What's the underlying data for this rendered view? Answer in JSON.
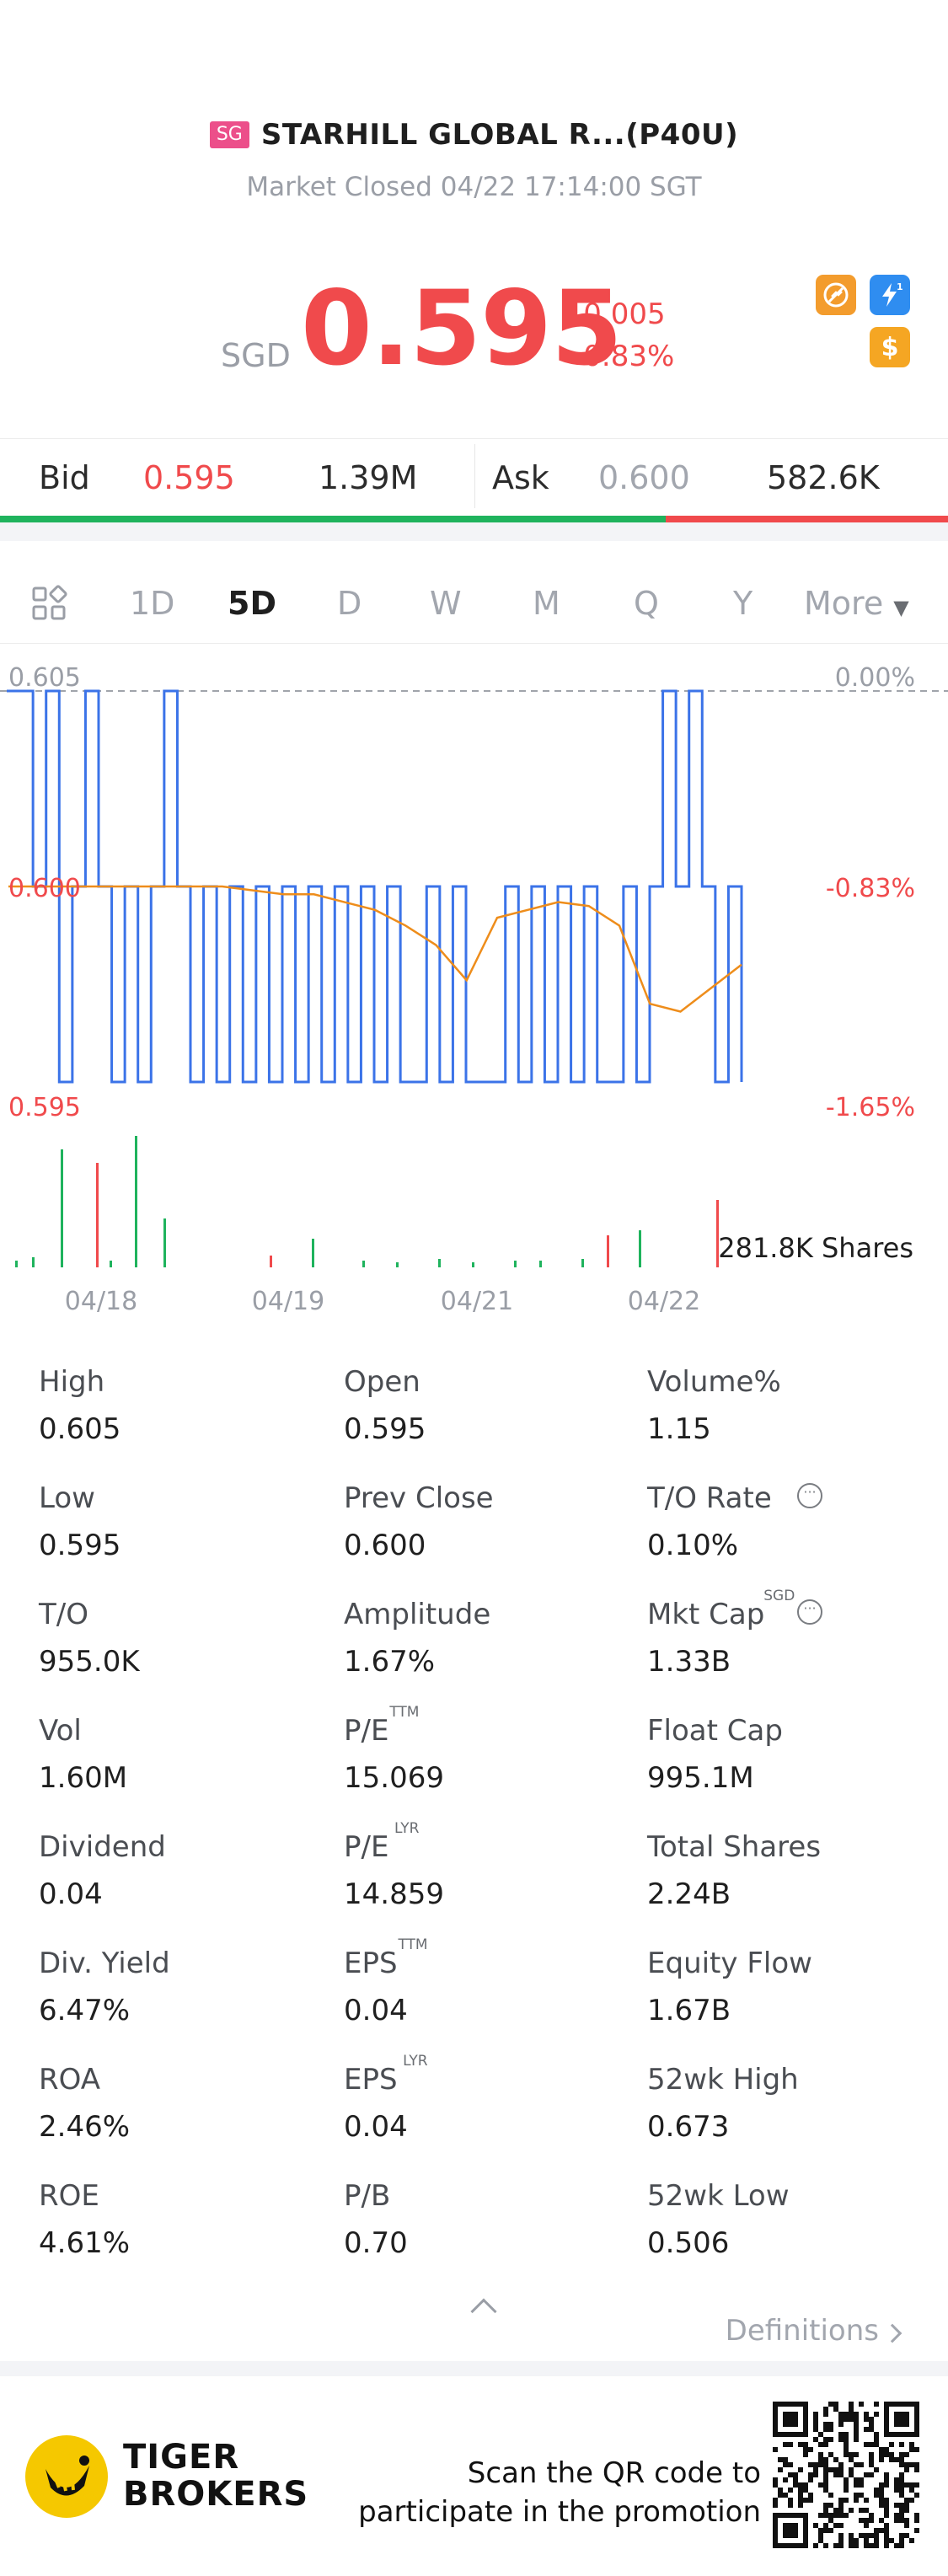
{
  "header": {
    "market_badge": "SG",
    "stock_name": "STARHILL GLOBAL R...(P40U)",
    "status": "Market Closed 04/22 17:14:00 SGT",
    "currency": "SGD",
    "price": "0.595",
    "change": "-0.005",
    "change_pct": "-0.83%",
    "icons": [
      "no-short-icon",
      "lightning-level1-icon",
      "dollar-icon"
    ]
  },
  "bid_ask": {
    "bid_label": "Bid",
    "bid_price": "0.595",
    "bid_size": "1.39M",
    "ask_label": "Ask",
    "ask_price": "0.600",
    "ask_size": "582.6K"
  },
  "tabs": {
    "items": [
      "1D",
      "5D",
      "D",
      "W",
      "M",
      "Q",
      "Y",
      "More"
    ],
    "active": "5D"
  },
  "chart_data": {
    "type": "line",
    "y_left_ticks": [
      "0.605",
      "0.600",
      "0.595"
    ],
    "y_right_ticks": [
      "0.00%",
      "-0.83%",
      "-1.65%"
    ],
    "x_labels": [
      "04/18",
      "04/19",
      "04/21",
      "04/22"
    ],
    "ylim": [
      0.595,
      0.605
    ],
    "volume_label": "281.8K Shares",
    "colors": {
      "price": "#3b73e8",
      "avg": "#ee8d1b",
      "up": "#1fb35d",
      "down": "#f04a4c"
    },
    "price_series": [
      0.605,
      0.605,
      0.6,
      0.605,
      0.595,
      0.6,
      0.605,
      0.6,
      0.595,
      0.6,
      0.595,
      0.6,
      0.605,
      0.6,
      0.595,
      0.6,
      0.595,
      0.6,
      0.595,
      0.6,
      0.595,
      0.6,
      0.595,
      0.6,
      0.595,
      0.6,
      0.595,
      0.6,
      0.595,
      0.6,
      0.595,
      0.595,
      0.6,
      0.595,
      0.6,
      0.595,
      0.595,
      0.595,
      0.6,
      0.595,
      0.6,
      0.595,
      0.6,
      0.595,
      0.6,
      0.595,
      0.595,
      0.6,
      0.595,
      0.6,
      0.605,
      0.6,
      0.605,
      0.6,
      0.595,
      0.6,
      0.595
    ],
    "avg_series": [
      0.6,
      0.6,
      0.6,
      0.6,
      0.6,
      0.6,
      0.6,
      0.6,
      0.5999,
      0.5998,
      0.5998,
      0.5996,
      0.5994,
      0.599,
      0.5985,
      0.5976,
      0.5992,
      0.5994,
      0.5996,
      0.5995,
      0.599,
      0.597,
      0.5968,
      0.5974,
      0.598
    ]
  },
  "stats": [
    {
      "label": "High",
      "value": "0.605"
    },
    {
      "label": "Open",
      "value": "0.595"
    },
    {
      "label": "Volume%",
      "value": "1.15"
    },
    {
      "label": "Low",
      "value": "0.595"
    },
    {
      "label": "Prev Close",
      "value": "0.600"
    },
    {
      "label": "T/O Rate",
      "value": "0.10%"
    },
    {
      "label": "T/O",
      "value": "955.0K"
    },
    {
      "label": "Amplitude",
      "value": "1.67%"
    },
    {
      "label": "Mkt Cap",
      "value": "1.33B",
      "sup": "SGD"
    },
    {
      "label": "Vol",
      "value": "1.60M"
    },
    {
      "label": "P/E",
      "value": "15.069",
      "sup": "TTM"
    },
    {
      "label": "Float Cap",
      "value": "995.1M"
    },
    {
      "label": "Dividend",
      "value": "0.04"
    },
    {
      "label": "P/E",
      "value": "14.859",
      "sup": "LYR"
    },
    {
      "label": "Total Shares",
      "value": "2.24B"
    },
    {
      "label": "Div. Yield",
      "value": "6.47%"
    },
    {
      "label": "EPS",
      "value": "0.04",
      "sup": "TTM"
    },
    {
      "label": "Equity Flow",
      "value": "1.67B"
    },
    {
      "label": "ROA",
      "value": "2.46%"
    },
    {
      "label": "EPS",
      "value": "0.04",
      "sup": "LYR"
    },
    {
      "label": "52wk High",
      "value": "0.673"
    },
    {
      "label": "ROE",
      "value": "4.61%"
    },
    {
      "label": "P/B",
      "value": "0.70"
    },
    {
      "label": "52wk Low",
      "value": "0.506"
    }
  ],
  "footer": {
    "definitions": "Definitions"
  },
  "promo": {
    "logo_line1": "TIGER",
    "logo_line2": "BROKERS",
    "text_line1": "Scan the QR code to",
    "text_line2": "participate in the promotion"
  }
}
